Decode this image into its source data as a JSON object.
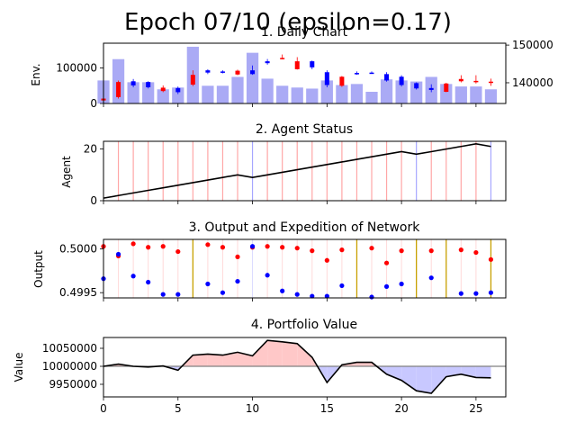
{
  "suptitle": "Epoch 07/10 (epsilon=0.17)",
  "colors": {
    "volume": "#aaaaf5",
    "up": "#0000ff",
    "down": "#ff0000",
    "hold": "#c8a000",
    "line": "#000000",
    "baseline": "#808080",
    "gain_fill": "#ffc8c8",
    "loss_fill": "#c8c8ff"
  },
  "chart_data": [
    {
      "type": "bar+candlestick",
      "title": "1. Daily Chart",
      "ylabel": "Env.",
      "x": [
        0,
        1,
        2,
        3,
        4,
        5,
        6,
        7,
        8,
        9,
        10,
        11,
        12,
        13,
        14,
        15,
        16,
        17,
        18,
        19,
        20,
        21,
        22,
        23,
        24,
        25,
        26
      ],
      "xlim": [
        0,
        27
      ],
      "volume": [
        65000,
        125000,
        60000,
        60000,
        40000,
        45000,
        160000,
        50000,
        50000,
        75000,
        143000,
        70000,
        50000,
        45000,
        42000,
        65000,
        52000,
        55000,
        33000,
        68000,
        65000,
        62000,
        75000,
        55000,
        48000,
        48000,
        40000
      ],
      "volume_ylim": [
        0,
        170000
      ],
      "volume_ticks": [
        0,
        100000
      ],
      "price_ylim": [
        134500,
        150500
      ],
      "price_ticks": [
        140000,
        150000
      ],
      "candles": [
        {
          "x": 0,
          "open": 135800,
          "close": 135300,
          "high": 136000,
          "low": 135200
        },
        {
          "x": 1,
          "open": 140200,
          "close": 136200,
          "high": 140600,
          "low": 135800
        },
        {
          "x": 2,
          "open": 139300,
          "close": 140400,
          "high": 141000,
          "low": 138800
        },
        {
          "x": 3,
          "open": 138800,
          "close": 140200,
          "high": 140400,
          "low": 138500
        },
        {
          "x": 4,
          "open": 138700,
          "close": 137800,
          "high": 139300,
          "low": 137500
        },
        {
          "x": 5,
          "open": 137500,
          "close": 138600,
          "high": 139000,
          "low": 137000
        },
        {
          "x": 6,
          "open": 142100,
          "close": 139500,
          "high": 143300,
          "low": 139100
        },
        {
          "x": 7,
          "open": 142700,
          "close": 143300,
          "high": 143600,
          "low": 142300
        },
        {
          "x": 8,
          "open": 142700,
          "close": 143000,
          "high": 143300,
          "low": 142500
        },
        {
          "x": 9,
          "open": 143200,
          "close": 142200,
          "high": 143500,
          "low": 142000
        },
        {
          "x": 10,
          "open": 142300,
          "close": 143300,
          "high": 144600,
          "low": 142100
        },
        {
          "x": 11,
          "open": 145200,
          "close": 145700,
          "high": 146300,
          "low": 144800
        },
        {
          "x": 12,
          "open": 146600,
          "close": 146400,
          "high": 147500,
          "low": 146200
        },
        {
          "x": 13,
          "open": 145700,
          "close": 143600,
          "high": 146800,
          "low": 143500
        },
        {
          "x": 14,
          "open": 144100,
          "close": 145700,
          "high": 145900,
          "low": 143600
        },
        {
          "x": 15,
          "open": 139400,
          "close": 142800,
          "high": 143300,
          "low": 138800
        },
        {
          "x": 16,
          "open": 141600,
          "close": 139200,
          "high": 141800,
          "low": 138900
        },
        {
          "x": 17,
          "open": 142300,
          "close": 142600,
          "high": 143000,
          "low": 142100
        },
        {
          "x": 18,
          "open": 142600,
          "close": 142700,
          "high": 143000,
          "low": 142400
        },
        {
          "x": 19,
          "open": 140600,
          "close": 142300,
          "high": 142800,
          "low": 140300
        },
        {
          "x": 20,
          "open": 139400,
          "close": 141600,
          "high": 142000,
          "low": 139000
        },
        {
          "x": 21,
          "open": 138500,
          "close": 139900,
          "high": 140100,
          "low": 138200
        },
        {
          "x": 22,
          "open": 138100,
          "close": 138600,
          "high": 139600,
          "low": 137500
        },
        {
          "x": 23,
          "open": 139800,
          "close": 137600,
          "high": 140000,
          "low": 137500
        },
        {
          "x": 24,
          "open": 141000,
          "close": 140400,
          "high": 142000,
          "low": 140100
        },
        {
          "x": 25,
          "open": 140500,
          "close": 140300,
          "high": 142000,
          "low": 139800
        },
        {
          "x": 26,
          "open": 140300,
          "close": 140000,
          "high": 141100,
          "low": 139200
        }
      ]
    },
    {
      "type": "line",
      "title": "2. Agent Status",
      "ylabel": "Agent",
      "x": [
        0,
        1,
        2,
        3,
        4,
        5,
        6,
        7,
        8,
        9,
        10,
        11,
        12,
        13,
        14,
        15,
        16,
        17,
        18,
        19,
        20,
        21,
        22,
        23,
        24,
        25,
        26
      ],
      "xlim": [
        0,
        27
      ],
      "ylim": [
        0,
        23
      ],
      "yticks": [
        0,
        20
      ],
      "values": [
        1,
        2,
        3,
        4,
        5,
        6,
        7,
        8,
        9,
        10,
        9,
        10,
        11,
        12,
        13,
        14,
        15,
        16,
        17,
        18,
        19,
        18,
        19,
        20,
        21,
        22,
        21
      ],
      "actions": [
        "",
        "sell",
        "sell",
        "sell",
        "sell",
        "sell",
        "sell",
        "sell",
        "sell",
        "sell",
        "buy",
        "sell",
        "sell",
        "sell",
        "sell",
        "sell",
        "sell",
        "sell",
        "sell",
        "sell",
        "sell",
        "buy",
        "sell",
        "sell",
        "sell",
        "sell",
        "buy"
      ]
    },
    {
      "type": "scatter",
      "title": "3. Output and Expedition of Network",
      "ylabel": "Output",
      "x": [
        0,
        1,
        2,
        3,
        4,
        5,
        6,
        7,
        8,
        9,
        10,
        11,
        12,
        13,
        14,
        15,
        16,
        17,
        18,
        19,
        20,
        21,
        22,
        23,
        24,
        25,
        26
      ],
      "xlim": [
        0,
        27
      ],
      "ylim": [
        0.49944,
        0.50011
      ],
      "yticks": [
        0.4995,
        0.5
      ],
      "yticklabels": [
        "0.4995",
        "0.5000"
      ],
      "series": [
        {
          "color": "red",
          "values": [
            0.50003,
            0.49992,
            0.50006,
            0.50002,
            0.50003,
            0.49997,
            null,
            0.50005,
            0.50002,
            0.49991,
            0.50002,
            0.50003,
            0.50002,
            0.50001,
            0.49998,
            0.49987,
            0.49999,
            null,
            0.50001,
            0.49984,
            0.49998,
            null,
            0.49998,
            null,
            0.49999,
            0.49996,
            0.49988
          ]
        },
        {
          "color": "blue",
          "values": [
            0.49966,
            0.49994,
            0.49969,
            0.49962,
            0.49948,
            0.49948,
            null,
            0.4996,
            0.4995,
            0.49963,
            0.50003,
            0.4997,
            0.49952,
            0.49948,
            0.49946,
            0.49946,
            0.49958,
            null,
            0.49945,
            0.49957,
            0.4996,
            null,
            0.49967,
            null,
            0.49949,
            0.49949,
            0.4995
          ]
        }
      ],
      "expedition_x": [
        6,
        17,
        21,
        23,
        26
      ],
      "guide_colors": [
        "",
        "red",
        "red",
        "red",
        "red",
        "red",
        "",
        "red",
        "red",
        "red",
        "blue",
        "red",
        "red",
        "red",
        "red",
        "red",
        "red",
        "",
        "red",
        "red",
        "red",
        "",
        "red",
        "",
        "red",
        "red",
        ""
      ]
    },
    {
      "type": "area",
      "title": "4. Portfolio Value",
      "ylabel": "Value",
      "x": [
        0,
        1,
        2,
        3,
        4,
        5,
        6,
        7,
        8,
        9,
        10,
        11,
        12,
        13,
        14,
        15,
        16,
        17,
        18,
        19,
        20,
        21,
        22,
        23,
        24,
        25,
        26
      ],
      "xlim": [
        0,
        27
      ],
      "ylim": [
        9915000,
        10080000
      ],
      "yticks": [
        9950000,
        10000000,
        10050000
      ],
      "baseline": 10000000,
      "values": [
        10000000,
        10006000,
        10000000,
        9998000,
        10001000,
        9989000,
        10031000,
        10034000,
        10031000,
        10039000,
        10029000,
        10072000,
        10068000,
        10063000,
        10025000,
        9955000,
        10004000,
        10011000,
        10011000,
        9978000,
        9961000,
        9932000,
        9925000,
        9971000,
        9978000,
        9969000,
        9968000
      ],
      "xticks": [
        0,
        5,
        10,
        15,
        20,
        25
      ]
    }
  ]
}
